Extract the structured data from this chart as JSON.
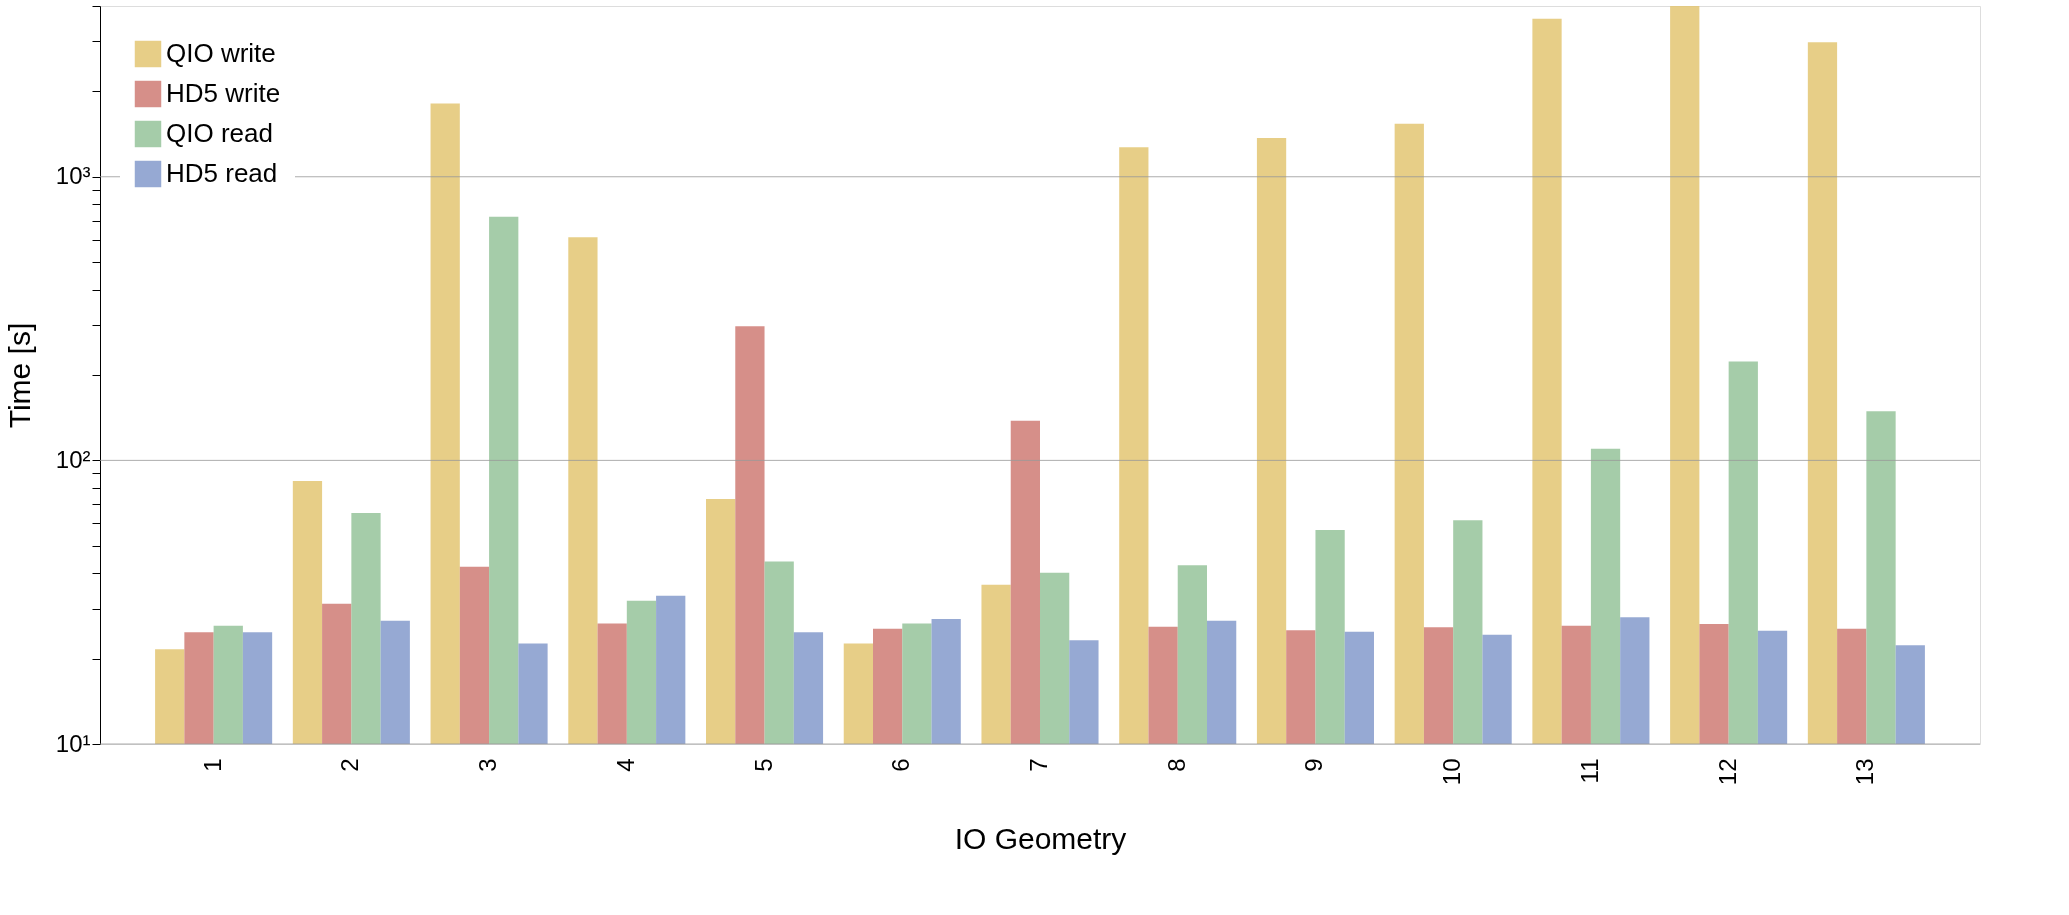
{
  "chart_data": {
    "type": "bar",
    "xlabel": "IO Geometry",
    "ylabel": "Time [s]",
    "categories": [
      "1",
      "2",
      "3",
      "4",
      "5",
      "6",
      "7",
      "8",
      "9",
      "10",
      "11",
      "12",
      "13"
    ],
    "series": [
      {
        "name": "QIO write",
        "color": "#e3c672",
        "values": [
          21.6,
          84.6,
          1811,
          612,
          73.1,
          22.6,
          36.4,
          1271,
          1371,
          1538,
          3606,
          4000,
          2979
        ]
      },
      {
        "name": "HD5 write",
        "color": "#cf7b74",
        "values": [
          24.8,
          31.2,
          42.2,
          26.6,
          297,
          25.5,
          138,
          25.9,
          25.2,
          25.8,
          26.1,
          26.5,
          25.5
        ]
      },
      {
        "name": "QIO read",
        "color": "#95c39a",
        "values": [
          26.1,
          65.2,
          723,
          32.0,
          44.0,
          26.6,
          40.2,
          42.7,
          56.8,
          61.5,
          110,
          223,
          149
        ]
      },
      {
        "name": "HD5 read",
        "color": "#849acb",
        "values": [
          24.8,
          27.2,
          22.6,
          33.3,
          24.8,
          27.6,
          23.2,
          27.2,
          24.9,
          24.3,
          28.0,
          25.1,
          22.3
        ]
      }
    ],
    "log": true,
    "ylim": [
      10,
      4000
    ],
    "yticks": [
      {
        "value": 10,
        "label": "10¹"
      },
      {
        "value": 20,
        "label": null
      },
      {
        "value": 30,
        "label": null
      },
      {
        "value": 40,
        "label": null
      },
      {
        "value": 50,
        "label": null
      },
      {
        "value": 60,
        "label": null
      },
      {
        "value": 70,
        "label": null
      },
      {
        "value": 80,
        "label": null
      },
      {
        "value": 90,
        "label": null
      },
      {
        "value": 100,
        "label": "10²"
      },
      {
        "value": 200,
        "label": null
      },
      {
        "value": 300,
        "label": null
      },
      {
        "value": 400,
        "label": null
      },
      {
        "value": 500,
        "label": null
      },
      {
        "value": 600,
        "label": null
      },
      {
        "value": 700,
        "label": null
      },
      {
        "value": 800,
        "label": null
      },
      {
        "value": 900,
        "label": null
      },
      {
        "value": 1000,
        "label": "10³"
      },
      {
        "value": 2000,
        "label": null
      },
      {
        "value": 3000,
        "label": null
      },
      {
        "value": 4000,
        "label": null
      }
    ],
    "grid": "y",
    "legend": "top left"
  }
}
